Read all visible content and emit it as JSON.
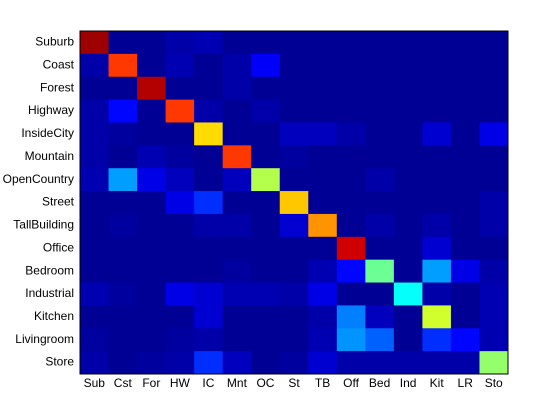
{
  "chart_data": {
    "type": "heatmap",
    "colormap": "jet",
    "zlim": [
      0,
      1
    ],
    "x_categories": [
      "Sub",
      "Cst",
      "For",
      "HW",
      "IC",
      "Mnt",
      "OC",
      "St",
      "TB",
      "Off",
      "Bed",
      "Ind",
      "Kit",
      "LR",
      "Sto"
    ],
    "y_categories": [
      "Suburb",
      "Coast",
      "Forest",
      "Highway",
      "InsideCity",
      "Mountain",
      "OpenCountry",
      "Street",
      "TallBuilding",
      "Office",
      "Bedroom",
      "Industrial",
      "Kitchen",
      "Livingroom",
      "Store"
    ],
    "values": [
      [
        0.97,
        0.02,
        0.02,
        0.04,
        0.05,
        0.02,
        0.02,
        0.02,
        0.02,
        0.02,
        0.02,
        0.02,
        0.02,
        0.02,
        0.02
      ],
      [
        0.04,
        0.82,
        0.02,
        0.05,
        0.02,
        0.04,
        0.12,
        0.02,
        0.02,
        0.02,
        0.02,
        0.02,
        0.02,
        0.02,
        0.02
      ],
      [
        0.02,
        0.02,
        0.95,
        0.02,
        0.02,
        0.04,
        0.02,
        0.02,
        0.02,
        0.02,
        0.02,
        0.02,
        0.02,
        0.02,
        0.02
      ],
      [
        0.04,
        0.13,
        0.02,
        0.82,
        0.04,
        0.02,
        0.04,
        0.02,
        0.02,
        0.02,
        0.02,
        0.02,
        0.02,
        0.02,
        0.02
      ],
      [
        0.04,
        0.03,
        0.02,
        0.02,
        0.66,
        0.02,
        0.02,
        0.06,
        0.06,
        0.04,
        0.02,
        0.02,
        0.08,
        0.02,
        0.1
      ],
      [
        0.04,
        0.02,
        0.05,
        0.03,
        0.02,
        0.82,
        0.02,
        0.03,
        0.02,
        0.02,
        0.02,
        0.02,
        0.02,
        0.02,
        0.02
      ],
      [
        0.05,
        0.28,
        0.1,
        0.06,
        0.02,
        0.06,
        0.55,
        0.02,
        0.02,
        0.02,
        0.04,
        0.02,
        0.02,
        0.02,
        0.02
      ],
      [
        0.02,
        0.02,
        0.02,
        0.1,
        0.17,
        0.02,
        0.02,
        0.68,
        0.02,
        0.02,
        0.02,
        0.02,
        0.02,
        0.02,
        0.04
      ],
      [
        0.02,
        0.03,
        0.02,
        0.02,
        0.04,
        0.04,
        0.02,
        0.08,
        0.73,
        0.02,
        0.04,
        0.02,
        0.04,
        0.02,
        0.04
      ],
      [
        0.02,
        0.02,
        0.02,
        0.02,
        0.02,
        0.02,
        0.02,
        0.02,
        0.02,
        0.92,
        0.02,
        0.02,
        0.08,
        0.02,
        0.02
      ],
      [
        0.02,
        0.02,
        0.02,
        0.02,
        0.02,
        0.03,
        0.02,
        0.02,
        0.05,
        0.13,
        0.48,
        0.02,
        0.28,
        0.1,
        0.04
      ],
      [
        0.05,
        0.03,
        0.02,
        0.1,
        0.08,
        0.05,
        0.05,
        0.04,
        0.1,
        0.02,
        0.02,
        0.38,
        0.04,
        0.02,
        0.05
      ],
      [
        0.02,
        0.02,
        0.02,
        0.02,
        0.08,
        0.02,
        0.02,
        0.02,
        0.04,
        0.25,
        0.06,
        0.02,
        0.58,
        0.02,
        0.05
      ],
      [
        0.03,
        0.02,
        0.02,
        0.03,
        0.04,
        0.02,
        0.02,
        0.02,
        0.05,
        0.27,
        0.22,
        0.02,
        0.17,
        0.13,
        0.05
      ],
      [
        0.04,
        0.02,
        0.03,
        0.04,
        0.17,
        0.06,
        0.02,
        0.03,
        0.08,
        0.04,
        0.04,
        0.04,
        0.04,
        0.04,
        0.52
      ]
    ]
  }
}
